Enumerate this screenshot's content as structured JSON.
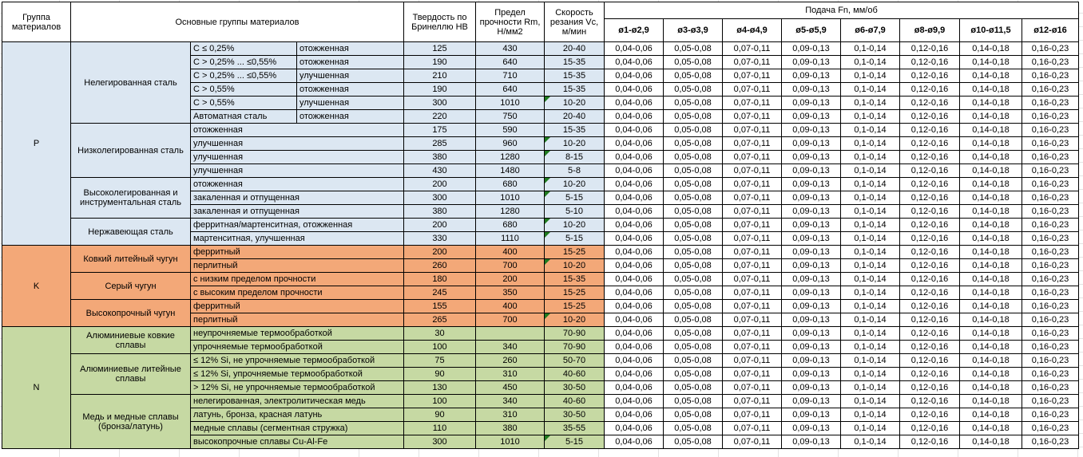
{
  "table": {
    "header": {
      "group": "Группа материалов",
      "material_groups": "Основные группы материалов",
      "hardness": "Твердость по Бринеллю HB",
      "strength": "Предел прочности Rm, Н/мм2",
      "speed": "Скорость резания Vc, м/мин",
      "feed": "Подача Fn, мм/об",
      "feed_columns": [
        "ø1-ø2,9",
        "ø3-ø3,9",
        "ø4-ø4,9",
        "ø5-ø5,9",
        "ø6-ø7,9",
        "ø8-ø9,9",
        "ø10-ø11,5",
        "ø12-ø16"
      ]
    },
    "feed_values": [
      "0,04-0,06",
      "0,05-0,08",
      "0,07-0,11",
      "0,09-0,13",
      "0,1-0,14",
      "0,12-0,16",
      "0,14-0,18",
      "0,16-0,23"
    ],
    "colors": {
      "group_p_fill": "#dce7f2",
      "group_k_fill": "#f3a878",
      "group_n_fill": "#c6d9a3",
      "comment_flag": "#1f7a1f",
      "cell_border": "#000000"
    },
    "groups": [
      {
        "letter": "P",
        "color_class": "bg-p",
        "subgroups": [
          {
            "label": "Нелегированная сталь",
            "rows": [
              {
                "condition": "C ≤ 0,25%",
                "state": "отожженная",
                "hb": "125",
                "rm": "430",
                "vc": "20-40",
                "flag": false
              },
              {
                "condition": "C > 0,25% ... ≤0,55%",
                "state": "отожженная",
                "hb": "190",
                "rm": "640",
                "vc": "15-35",
                "flag": false
              },
              {
                "condition": "C > 0,25% ... ≤0,55%",
                "state": "улучшенная",
                "hb": "210",
                "rm": "710",
                "vc": "15-35",
                "flag": false
              },
              {
                "condition": "C > 0,55%",
                "state": "отожженная",
                "hb": "190",
                "rm": "640",
                "vc": "15-35",
                "flag": false
              },
              {
                "condition": "C > 0,55%",
                "state": "улучшенная",
                "hb": "300",
                "rm": "1010",
                "vc": "10-20",
                "flag": true
              },
              {
                "condition": "Автоматная сталь",
                "state": "отожженная",
                "hb": "220",
                "rm": "750",
                "vc": "20-40",
                "flag": false
              }
            ]
          },
          {
            "label": "Низколегированная сталь",
            "rows": [
              {
                "state": "отожженная",
                "hb": "175",
                "rm": "590",
                "vc": "15-35",
                "flag": false
              },
              {
                "state": "улучшенная",
                "hb": "285",
                "rm": "960",
                "vc": "10-20",
                "flag": true
              },
              {
                "state": "улучшенная",
                "hb": "380",
                "rm": "1280",
                "vc": "8-15",
                "flag": true
              },
              {
                "state": "улучшенная",
                "hb": "430",
                "rm": "1480",
                "vc": "5-8",
                "flag": false
              }
            ]
          },
          {
            "label": "Высоколегированная и инструментальная сталь",
            "rows": [
              {
                "state": "отожженная",
                "hb": "200",
                "rm": "680",
                "vc": "10-20",
                "flag": true
              },
              {
                "state": "закаленная и отпущенная",
                "hb": "300",
                "rm": "1010",
                "vc": "5-15",
                "flag": true
              },
              {
                "state": "закаленная и отпущенная",
                "hb": "380",
                "rm": "1280",
                "vc": "5-10",
                "flag": false
              }
            ]
          },
          {
            "label": "Нержавеющая сталь",
            "rows": [
              {
                "state": "ферритная/мартенситная, отожженная",
                "hb": "200",
                "rm": "680",
                "vc": "10-20",
                "flag": true
              },
              {
                "state": "мартенситная, улучшенная",
                "hb": "330",
                "rm": "1110",
                "vc": "5-15",
                "flag": true
              }
            ]
          }
        ]
      },
      {
        "letter": "K",
        "color_class": "bg-k",
        "subgroups": [
          {
            "label": "Ковкий литейный чугун",
            "rows": [
              {
                "state": "ферритный",
                "hb": "200",
                "rm": "400",
                "vc": "15-25",
                "flag": false
              },
              {
                "state": "перлитный",
                "hb": "260",
                "rm": "700",
                "vc": "10-20",
                "flag": true
              }
            ]
          },
          {
            "label": "Серый чугун",
            "rows": [
              {
                "state": "с низким пределом прочности",
                "hb": "180",
                "rm": "200",
                "vc": "15-35",
                "flag": false
              },
              {
                "state": "с высоким пределом прочности",
                "hb": "245",
                "rm": "350",
                "vc": "15-25",
                "flag": false
              }
            ]
          },
          {
            "label": "Высокопрочный чугун",
            "rows": [
              {
                "state": "ферритный",
                "hb": "155",
                "rm": "400",
                "vc": "15-25",
                "flag": false
              },
              {
                "state": "перлитный",
                "hb": "265",
                "rm": "700",
                "vc": "10-20",
                "flag": true
              }
            ]
          }
        ]
      },
      {
        "letter": "N",
        "color_class": "bg-n",
        "subgroups": [
          {
            "label": "Алюминиевые ковкие сплавы",
            "rows": [
              {
                "state": "неупрочняемые термообработкой",
                "hb": "30",
                "rm": "",
                "vc": "70-90",
                "flag": false
              },
              {
                "state": "упрочняемые термообработкой",
                "hb": "100",
                "rm": "340",
                "vc": "70-90",
                "flag": false
              }
            ]
          },
          {
            "label": "Алюминиевые литейные сплавы",
            "rows": [
              {
                "state": "≤ 12% Si, не упрочняемые термообработкой",
                "hb": "75",
                "rm": "260",
                "vc": "50-70",
                "flag": false
              },
              {
                "state": "≤ 12% Si, упрочняемые термообработкой",
                "hb": "90",
                "rm": "310",
                "vc": "40-60",
                "flag": false
              },
              {
                "state": "> 12% Si, не упрочняемые термообработкой",
                "hb": "130",
                "rm": "450",
                "vc": "30-50",
                "flag": false
              }
            ]
          },
          {
            "label": "Медь и медные сплавы (бронза/латунь)",
            "rows": [
              {
                "state": "нелегированная, электролитическая медь",
                "hb": "100",
                "rm": "340",
                "vc": "40-60",
                "flag": false
              },
              {
                "state": "латунь, бронза, красная латунь",
                "hb": "90",
                "rm": "310",
                "vc": "30-50",
                "flag": false
              },
              {
                "state": "медные сплавы (сегментная стружка)",
                "hb": "110",
                "rm": "380",
                "vc": "35-55",
                "flag": false
              },
              {
                "state": "высокопрочные сплавы Cu-Al-Fe",
                "hb": "300",
                "rm": "1010",
                "vc": "5-15",
                "flag": true
              }
            ]
          }
        ]
      }
    ]
  }
}
